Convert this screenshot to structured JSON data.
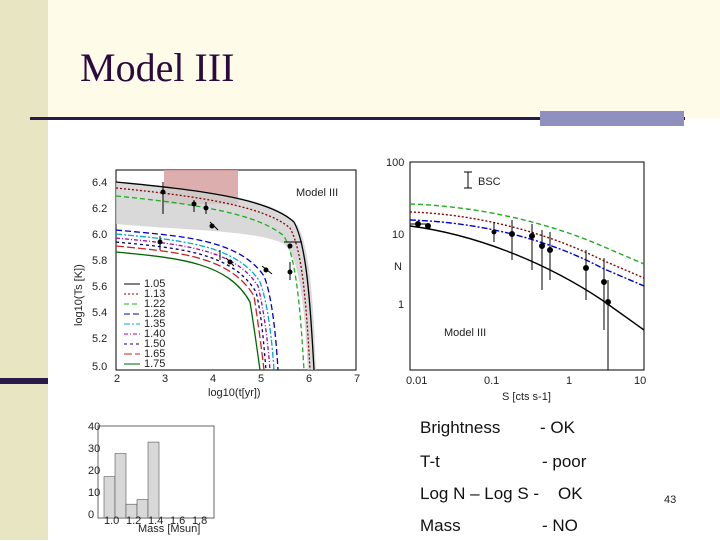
{
  "slide": {
    "title": "Model III",
    "page_number": "43"
  },
  "left_chart": {
    "label": "Model III",
    "x_label": "log10(t[yr])",
    "y_label": "log10(Ts [K])",
    "x_ticks": [
      "2",
      "3",
      "4",
      "5",
      "6",
      "7"
    ],
    "y_ticks": [
      "6.4",
      "6.2",
      "6.0",
      "5.8",
      "5.6",
      "5.4",
      "5.2",
      "5.0"
    ],
    "legend": [
      "1.05",
      "1.13",
      "1.22",
      "1.28",
      "1.35",
      "1.40",
      "1.50",
      "1.65",
      "1.75"
    ],
    "colors": [
      "#000000",
      "#8b0000",
      "#22aa22",
      "#0000cc",
      "#00aacc",
      "#aa00aa",
      "#000080",
      "#cc2222",
      "#006600"
    ]
  },
  "right_chart": {
    "label": "Model III",
    "bsc_label": "BSC",
    "x_label": "S [cts s-1]",
    "y_label": "N",
    "x_ticks": [
      "0.01",
      "0.1",
      "1",
      "10"
    ],
    "y_ticks": [
      "100",
      "10",
      "1"
    ]
  },
  "mass_chart": {
    "x_ticks": [
      "1.0",
      "1.2",
      "1.4",
      "1.6",
      "1.8"
    ],
    "y_ticks": [
      "40",
      "30",
      "20",
      "10",
      "0"
    ],
    "x_label": "Mass [Msun]",
    "bars": [
      18,
      28,
      6,
      8,
      33
    ]
  },
  "bullets": [
    {
      "label": "Brightness",
      "value": "- OK"
    },
    {
      "label": "T-t",
      "value": "- poor"
    },
    {
      "label": "Log N – Log S -",
      "value": "OK"
    },
    {
      "label": "Mass",
      "value": "- NO"
    }
  ]
}
